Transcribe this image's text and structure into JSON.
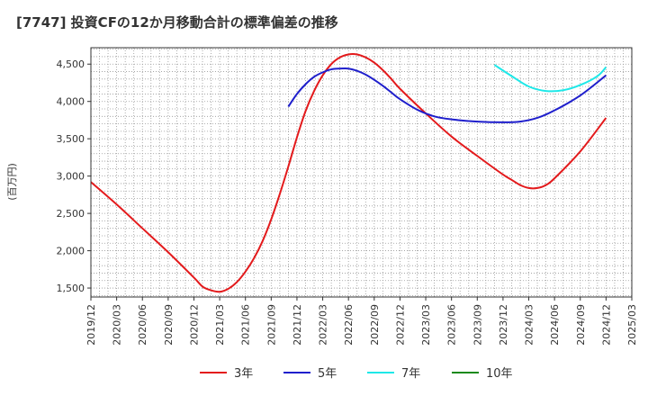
{
  "chart_data": {
    "type": "line",
    "title": "[7747]  投資CFの12か月移動合計の標準偏差の推移",
    "ylabel": "(百万円)",
    "xlabel": "",
    "ylim": [
      1380,
      4720
    ],
    "xlim": [
      "2019-12",
      "2025-03"
    ],
    "yticks": [
      1500,
      2000,
      2500,
      3000,
      3500,
      4000,
      4500
    ],
    "ytick_labels": [
      "1,500",
      "2,000",
      "2,500",
      "3,000",
      "3,500",
      "4,000",
      "4,500"
    ],
    "xtick_labels": [
      "2019/12",
      "2020/03",
      "2020/06",
      "2020/09",
      "2020/12",
      "2021/03",
      "2021/06",
      "2021/09",
      "2021/12",
      "2022/03",
      "2022/06",
      "2022/09",
      "2022/12",
      "2023/03",
      "2023/06",
      "2023/09",
      "2023/12",
      "2024/03",
      "2024/06",
      "2024/09",
      "2024/12",
      "2025/03"
    ],
    "grid": true,
    "legend_position": "bottom",
    "series": [
      {
        "name": "3年",
        "color": "#e31a1c",
        "points": [
          [
            "2019-12",
            2920
          ],
          [
            "2020-03",
            2620
          ],
          [
            "2020-06",
            2300
          ],
          [
            "2020-09",
            1980
          ],
          [
            "2020-12",
            1640
          ],
          [
            "2021-01",
            1520
          ],
          [
            "2021-02",
            1470
          ],
          [
            "2021-03",
            1450
          ],
          [
            "2021-04",
            1490
          ],
          [
            "2021-05",
            1580
          ],
          [
            "2021-06",
            1720
          ],
          [
            "2021-07",
            1900
          ],
          [
            "2021-08",
            2130
          ],
          [
            "2021-09",
            2420
          ],
          [
            "2021-10",
            2760
          ],
          [
            "2021-11",
            3130
          ],
          [
            "2021-12",
            3520
          ],
          [
            "2022-01",
            3870
          ],
          [
            "2022-02",
            4140
          ],
          [
            "2022-03",
            4350
          ],
          [
            "2022-04",
            4500
          ],
          [
            "2022-05",
            4590
          ],
          [
            "2022-06",
            4630
          ],
          [
            "2022-07",
            4630
          ],
          [
            "2022-08",
            4590
          ],
          [
            "2022-09",
            4520
          ],
          [
            "2022-10",
            4420
          ],
          [
            "2022-11",
            4300
          ],
          [
            "2022-12",
            4170
          ],
          [
            "2023-03",
            3840
          ],
          [
            "2023-06",
            3530
          ],
          [
            "2023-09",
            3270
          ],
          [
            "2023-12",
            3020
          ],
          [
            "2024-01",
            2950
          ],
          [
            "2024-02",
            2880
          ],
          [
            "2024-03",
            2840
          ],
          [
            "2024-04",
            2840
          ],
          [
            "2024-05",
            2880
          ],
          [
            "2024-06",
            2970
          ],
          [
            "2024-09",
            3330
          ],
          [
            "2024-12",
            3780
          ]
        ]
      },
      {
        "name": "5年",
        "color": "#1f1fcc",
        "points": [
          [
            "2021-11",
            3930
          ],
          [
            "2021-12",
            4100
          ],
          [
            "2022-01",
            4230
          ],
          [
            "2022-02",
            4330
          ],
          [
            "2022-03",
            4390
          ],
          [
            "2022-04",
            4430
          ],
          [
            "2022-05",
            4440
          ],
          [
            "2022-06",
            4440
          ],
          [
            "2022-07",
            4410
          ],
          [
            "2022-08",
            4360
          ],
          [
            "2022-09",
            4290
          ],
          [
            "2022-10",
            4210
          ],
          [
            "2022-11",
            4120
          ],
          [
            "2022-12",
            4030
          ],
          [
            "2023-02",
            3890
          ],
          [
            "2023-04",
            3800
          ],
          [
            "2023-06",
            3760
          ],
          [
            "2023-09",
            3730
          ],
          [
            "2023-12",
            3720
          ],
          [
            "2024-02",
            3730
          ],
          [
            "2024-04",
            3780
          ],
          [
            "2024-06",
            3880
          ],
          [
            "2024-09",
            4080
          ],
          [
            "2024-12",
            4350
          ]
        ]
      },
      {
        "name": "7年",
        "color": "#1ee8e8",
        "points": [
          [
            "2023-11",
            4490
          ],
          [
            "2024-01",
            4340
          ],
          [
            "2024-03",
            4200
          ],
          [
            "2024-05",
            4140
          ],
          [
            "2024-07",
            4150
          ],
          [
            "2024-09",
            4220
          ],
          [
            "2024-11",
            4340
          ],
          [
            "2024-12",
            4460
          ]
        ]
      },
      {
        "name": "10年",
        "color": "#1a8a1a",
        "points": []
      }
    ]
  }
}
